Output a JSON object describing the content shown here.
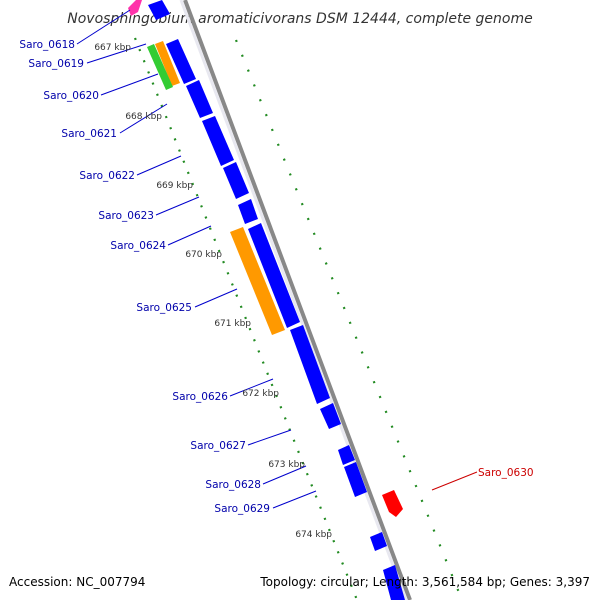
{
  "title": "Novosphingobium aromaticivorans DSM 12444, complete genome",
  "accession": "Accession: NC_007794",
  "summary": "Topology: circular; Length: 3,561,584 bp; Genes: 3,397",
  "colors": {
    "forward_gene": "#0000ff",
    "reverse_gene": "#ff0000",
    "orange_gene": "#ff9900",
    "green_gene": "#33cc33",
    "magenta_gene": "#ff33aa",
    "backbone": "#888888",
    "gc_dots": "#228b22",
    "label_blue": "#0000aa",
    "label_red": "#cc0000"
  },
  "ticks": [
    "667 kbp",
    "668 kbp",
    "669 kbp",
    "670 kbp",
    "671 kbp",
    "672 kbp",
    "673 kbp",
    "674 kbp"
  ],
  "genes": [
    {
      "label": "Saro_0618",
      "color": "blue"
    },
    {
      "label": "Saro_0619",
      "color": "blue"
    },
    {
      "label": "Saro_0620",
      "color": "blue"
    },
    {
      "label": "Saro_0621",
      "color": "blue"
    },
    {
      "label": "Saro_0622",
      "color": "blue"
    },
    {
      "label": "Saro_0623",
      "color": "blue"
    },
    {
      "label": "Saro_0624",
      "color": "blue"
    },
    {
      "label": "Saro_0625",
      "color": "blue"
    },
    {
      "label": "Saro_0626",
      "color": "blue"
    },
    {
      "label": "Saro_0627",
      "color": "blue"
    },
    {
      "label": "Saro_0628",
      "color": "blue"
    },
    {
      "label": "Saro_0629",
      "color": "blue"
    },
    {
      "label": "Saro_0630",
      "color": "red"
    }
  ]
}
